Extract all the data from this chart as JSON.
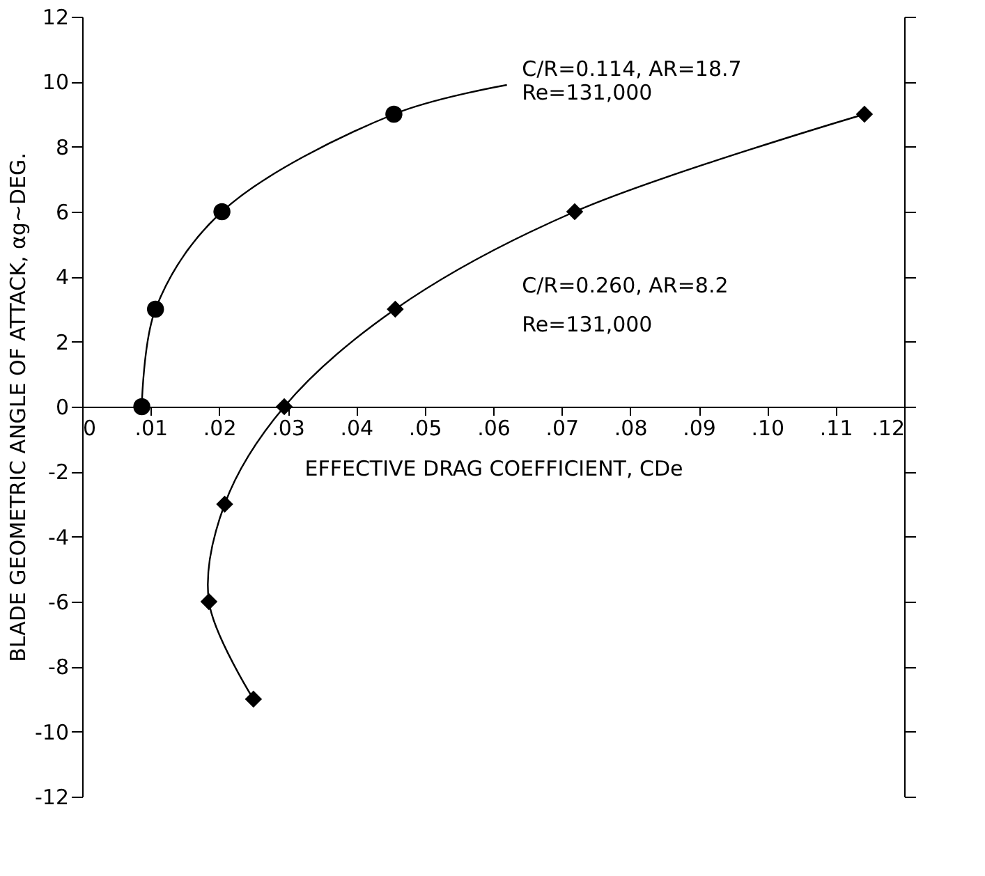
{
  "chart_data": {
    "type": "scatter",
    "xlabel": "EFFECTIVE DRAG COEFFICIENT, CDe",
    "ylabel": "BLADE GEOMETRIC ANGLE OF ATTACK, αg~DEG.",
    "series": [
      {
        "marker": "circle",
        "color": "#000000",
        "x": [
          0.0087,
          0.0107,
          0.0204,
          0.0455
        ],
        "values": [
          0,
          3,
          6,
          9
        ]
      },
      {
        "marker": "diamond",
        "color": "#000000",
        "x": [
          0.025,
          0.0185,
          0.0208,
          0.0295,
          0.0457,
          0.0719,
          0.1142
        ],
        "values": [
          -9,
          -6,
          -3,
          0,
          3,
          6,
          9
        ]
      },
      {
        "type": "line",
        "color": "#000000",
        "x": [
          0.0087,
          0.0107,
          0.0204,
          0.0455,
          0.062
        ],
        "values": [
          0,
          3,
          6,
          9,
          9.9
        ]
      },
      {
        "type": "line",
        "color": "#000000",
        "x": [
          0.025,
          0.0185,
          0.0208,
          0.0295,
          0.0457,
          0.0719,
          0.1142
        ],
        "values": [
          -9,
          -6,
          -3,
          0,
          3,
          6,
          9
        ]
      }
    ],
    "annotations": [
      "C/R=0.114, AR=18.7",
      "Re=131,000",
      "C/R=0.260, AR=8.2",
      "Re=131,000"
    ],
    "xlim": [
      0,
      0.12
    ],
    "xticks": [
      0,
      {
        "value": 0.01,
        "label": ".01"
      },
      {
        "value": 0.02,
        "label": ".02"
      },
      {
        "value": 0.03,
        "label": ".03"
      },
      {
        "value": 0.04,
        "label": ".04"
      },
      {
        "value": 0.05,
        "label": ".05"
      },
      {
        "value": 0.06,
        "label": ".06"
      },
      {
        "value": 0.07,
        "label": ".07"
      },
      {
        "value": 0.08,
        "label": ".08"
      },
      {
        "value": 0.09,
        "label": ".09"
      },
      {
        "value": 0.1,
        "label": ".10"
      },
      {
        "value": 0.11,
        "label": ".11"
      },
      {
        "value": 0.12,
        "label": ".12"
      }
    ],
    "ylim": [
      -12,
      12
    ],
    "yticks": [
      -12,
      -10,
      -8,
      -6,
      -4,
      -2,
      0,
      2,
      4,
      6,
      8,
      10,
      12
    ],
    "grid": false
  }
}
